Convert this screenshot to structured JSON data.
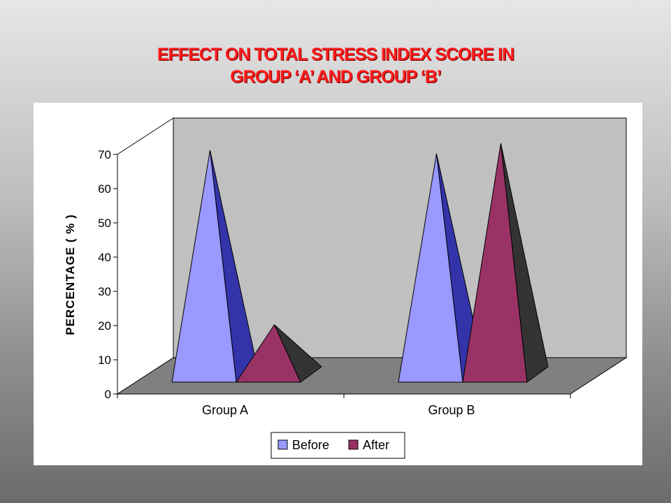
{
  "slide": {
    "title_line1": "EFFECT ON TOTAL STRESS INDEX SCORE IN",
    "title_line2": "GROUP ‘A’ AND GROUP ‘B’"
  },
  "chart_data": {
    "type": "bar",
    "style": "3d-pyramid",
    "categories": [
      "Group A",
      "Group B"
    ],
    "series": [
      {
        "name": "Before",
        "values": [
          70,
          69
        ],
        "color": "#9999ff",
        "side_color": "#3333aa"
      },
      {
        "name": "After",
        "values": [
          19,
          72
        ],
        "color": "#993366",
        "side_color": "#333333"
      }
    ],
    "ylabel": "PERCENTAGE ( % )",
    "ylim": [
      0,
      70
    ],
    "yticks": [
      "0",
      "10",
      "20",
      "30",
      "40",
      "50",
      "60",
      "70"
    ],
    "legend_position": "bottom",
    "grid": false
  }
}
